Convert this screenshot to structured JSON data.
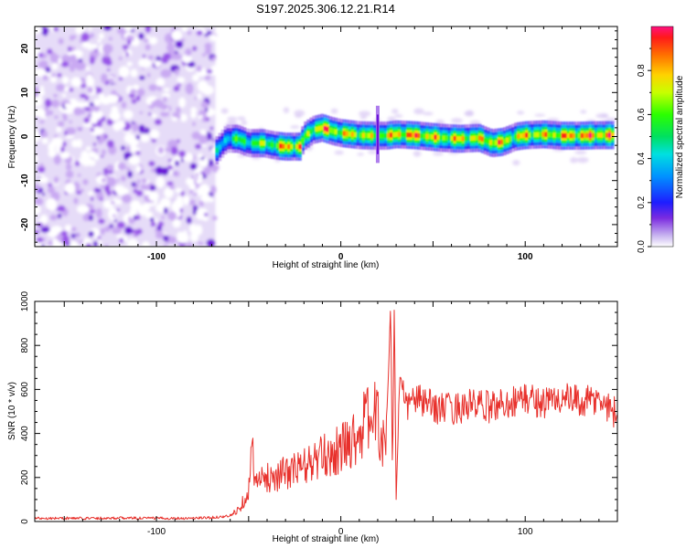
{
  "title": "S197.2025.306.12.21.R14",
  "chart_data": [
    {
      "type": "heatmap",
      "name": "spectrogram",
      "xlabel": "Height of straight line (km)",
      "ylabel": "Frequency (Hz)",
      "xlim": [
        -166,
        150
      ],
      "ylim": [
        -25,
        25
      ],
      "xticks": [
        -100,
        0,
        100
      ],
      "yticks": [
        -20,
        -10,
        0,
        10,
        20
      ],
      "colorbar": {
        "label": "Normalized spectral amplitude",
        "range": [
          0,
          1
        ],
        "ticks": [
          0.0,
          0.2,
          0.4,
          0.6,
          0.8
        ],
        "tick_labels": [
          "0.0",
          "0.2",
          "0.4",
          "0.6",
          "0.8"
        ]
      },
      "noise_region": {
        "x": [
          -166,
          -68
        ],
        "y": [
          -25,
          25
        ],
        "level": 0.2
      },
      "spike": {
        "x": 20,
        "y": [
          -6,
          7
        ]
      },
      "ridge": [
        {
          "x": -68,
          "f": -3.5,
          "a": 0.4
        },
        {
          "x": -62,
          "f": -0.5,
          "a": 0.5
        },
        {
          "x": -56,
          "f": -0.5,
          "a": 0.6
        },
        {
          "x": -50,
          "f": -1.5,
          "a": 0.6
        },
        {
          "x": -42,
          "f": -1.5,
          "a": 0.7
        },
        {
          "x": -36,
          "f": -2.0,
          "a": 0.7
        },
        {
          "x": -30,
          "f": -2.3,
          "a": 0.95
        },
        {
          "x": -22,
          "f": -2.3,
          "a": 0.9
        },
        {
          "x": -20,
          "f": 0.0,
          "a": 0.6
        },
        {
          "x": -15,
          "f": 1.5,
          "a": 0.8
        },
        {
          "x": -10,
          "f": 2.0,
          "a": 0.95
        },
        {
          "x": -5,
          "f": 1.3,
          "a": 0.85
        },
        {
          "x": 0,
          "f": 0.8,
          "a": 0.8
        },
        {
          "x": 10,
          "f": 0.3,
          "a": 0.85
        },
        {
          "x": 18,
          "f": 0.2,
          "a": 0.7
        },
        {
          "x": 25,
          "f": 0.2,
          "a": 0.8
        },
        {
          "x": 30,
          "f": 0.5,
          "a": 0.9
        },
        {
          "x": 40,
          "f": 0.3,
          "a": 0.95
        },
        {
          "x": 55,
          "f": -0.3,
          "a": 0.8
        },
        {
          "x": 65,
          "f": -0.5,
          "a": 0.85
        },
        {
          "x": 75,
          "f": -0.3,
          "a": 0.8
        },
        {
          "x": 82,
          "f": -1.5,
          "a": 0.9
        },
        {
          "x": 88,
          "f": -1.2,
          "a": 0.85
        },
        {
          "x": 95,
          "f": 0.0,
          "a": 0.75
        },
        {
          "x": 100,
          "f": 0.3,
          "a": 0.9
        },
        {
          "x": 110,
          "f": 0.5,
          "a": 0.8
        },
        {
          "x": 120,
          "f": 0.2,
          "a": 0.9
        },
        {
          "x": 130,
          "f": 0.2,
          "a": 0.95
        },
        {
          "x": 140,
          "f": 0.3,
          "a": 0.95
        },
        {
          "x": 148,
          "f": 0.3,
          "a": 0.9
        }
      ]
    },
    {
      "type": "line",
      "name": "snr",
      "xlabel": "Height of straight line (km)",
      "ylabel": "SNR (10 * v/v)",
      "xlim": [
        -166,
        150
      ],
      "ylim": [
        0,
        1000
      ],
      "xticks": [
        -100,
        0,
        100
      ],
      "yticks": [
        0,
        200,
        400,
        600,
        800,
        1000
      ],
      "color": "#e8312c",
      "series": [
        {
          "name": "SNR",
          "x": [
            -166,
            -140,
            -120,
            -100,
            -80,
            -70,
            -60,
            -55,
            -50,
            -48,
            -46,
            -40,
            -30,
            -20,
            -10,
            0,
            10,
            15,
            20,
            24,
            26,
            27,
            28,
            29,
            30,
            32,
            35,
            40,
            50,
            60,
            70,
            80,
            90,
            100,
            110,
            120,
            130,
            140,
            145,
            150
          ],
          "y": [
            15,
            15,
            16,
            15,
            15,
            18,
            25,
            60,
            140,
            330,
            170,
            200,
            220,
            250,
            290,
            330,
            400,
            480,
            470,
            300,
            700,
            1000,
            200,
            1000,
            100,
            650,
            520,
            560,
            520,
            510,
            530,
            520,
            540,
            560,
            540,
            560,
            540,
            550,
            520,
            490
          ]
        }
      ]
    }
  ]
}
